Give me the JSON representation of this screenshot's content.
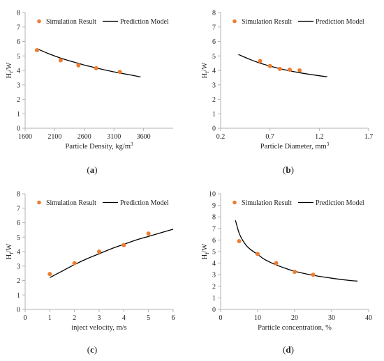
{
  "colors": {
    "sim": "#ed7d31",
    "model": "#000000",
    "axis": "#b3b3b3",
    "text": "#222222"
  },
  "chart_data": [
    {
      "type": "scatter",
      "panel": "a",
      "caption": "(a)",
      "xlabel": "Particle Density,  kg/m",
      "xlabel_sup": "3",
      "ylabel": "H",
      "ylabel_sub": "f",
      "ylabel_tail": "/W",
      "xlim": [
        1600,
        4100
      ],
      "ylim": [
        0,
        8
      ],
      "xticks": [
        1600,
        2100,
        2600,
        3100,
        3600
      ],
      "xtick_labels": [
        "1600",
        "2100",
        "2600",
        "3100",
        "3600"
      ],
      "yticks": [
        0,
        1,
        2,
        3,
        4,
        5,
        6,
        7,
        8
      ],
      "ytick_labels": [
        "0",
        "1",
        "2",
        "3",
        "4",
        "5",
        "6",
        "7",
        "8"
      ],
      "legend": {
        "sim": "Simulation Result",
        "model": "Prediction Model"
      },
      "series": [
        {
          "name": "Simulation Result",
          "type": "scatter",
          "x": [
            1800,
            2200,
            2500,
            2800,
            3200
          ],
          "y": [
            5.4,
            4.7,
            4.35,
            4.15,
            3.9
          ]
        },
        {
          "name": "Prediction Model",
          "type": "line",
          "x": [
            1800,
            2000,
            2200,
            2400,
            2600,
            2800,
            3000,
            3200,
            3400,
            3550
          ],
          "y": [
            5.5,
            5.15,
            4.85,
            4.6,
            4.37,
            4.17,
            3.98,
            3.82,
            3.67,
            3.55
          ]
        }
      ]
    },
    {
      "type": "scatter",
      "panel": "b",
      "caption": "(b)",
      "xlabel": "Particle Diameter,  mm",
      "xlabel_sup": "3",
      "ylabel": "H",
      "ylabel_sub": "f",
      "ylabel_tail": "/W",
      "xlim": [
        0.2,
        1.7
      ],
      "ylim": [
        0,
        8
      ],
      "xticks": [
        0.2,
        0.7,
        1.2,
        1.7
      ],
      "xtick_labels": [
        "0.2",
        "0.7",
        "1.2",
        "1.7"
      ],
      "yticks": [
        0,
        1,
        2,
        3,
        4,
        5,
        6,
        7,
        8
      ],
      "ytick_labels": [
        "0",
        "1",
        "2",
        "3",
        "4",
        "5",
        "6",
        "7",
        "8"
      ],
      "legend": {
        "sim": "Simulation Result",
        "model": "Prediction Model"
      },
      "series": [
        {
          "name": "Simulation Result",
          "type": "scatter",
          "x": [
            0.6,
            0.7,
            0.8,
            0.9,
            1.0
          ],
          "y": [
            4.65,
            4.3,
            4.1,
            4.05,
            4.0
          ]
        },
        {
          "name": "Prediction Model",
          "type": "line",
          "x": [
            0.38,
            0.5,
            0.6,
            0.7,
            0.8,
            0.9,
            1.0,
            1.1,
            1.2,
            1.28
          ],
          "y": [
            5.1,
            4.75,
            4.5,
            4.3,
            4.12,
            3.97,
            3.84,
            3.73,
            3.63,
            3.56
          ]
        }
      ]
    },
    {
      "type": "scatter",
      "panel": "c",
      "caption": "(c)",
      "xlabel": "inject velocity,  m/s",
      "xlabel_sup": "",
      "ylabel": "H",
      "ylabel_sub": "f",
      "ylabel_tail": "/W",
      "xlim": [
        0,
        6
      ],
      "ylim": [
        0,
        8
      ],
      "xticks": [
        0,
        1,
        2,
        3,
        4,
        5,
        6
      ],
      "xtick_labels": [
        "0",
        "1",
        "2",
        "3",
        "4",
        "5",
        "6"
      ],
      "yticks": [
        0,
        1,
        2,
        3,
        4,
        5,
        6,
        7,
        8
      ],
      "ytick_labels": [
        "0",
        "1",
        "2",
        "3",
        "4",
        "5",
        "6",
        "7",
        "8"
      ],
      "legend": {
        "sim": "Simulation Result",
        "model": "Prediction Model"
      },
      "series": [
        {
          "name": "Simulation Result",
          "type": "scatter",
          "x": [
            1,
            2,
            3,
            4,
            5
          ],
          "y": [
            2.45,
            3.2,
            4.0,
            4.45,
            5.25
          ]
        },
        {
          "name": "Prediction Model",
          "type": "line",
          "x": [
            1,
            1.5,
            2,
            2.5,
            3,
            3.5,
            4,
            4.5,
            5,
            5.5,
            6
          ],
          "y": [
            2.2,
            2.65,
            3.1,
            3.5,
            3.85,
            4.2,
            4.5,
            4.8,
            5.05,
            5.3,
            5.55
          ]
        }
      ]
    },
    {
      "type": "scatter",
      "panel": "d",
      "caption": "(d)",
      "xlabel": "Particle concentration,  %",
      "xlabel_sup": "",
      "ylabel": "H",
      "ylabel_sub": "f",
      "ylabel_tail": "/W",
      "xlim": [
        0,
        40
      ],
      "ylim": [
        0,
        10
      ],
      "xticks": [
        0,
        10,
        20,
        30,
        40
      ],
      "xtick_labels": [
        "0",
        "10",
        "20",
        "30",
        "40"
      ],
      "yticks": [
        0,
        1,
        2,
        3,
        4,
        5,
        6,
        7,
        8,
        9,
        10
      ],
      "ytick_labels": [
        "0",
        "1",
        "2",
        "3",
        "4",
        "5",
        "6",
        "7",
        "8",
        "9",
        "10"
      ],
      "legend": {
        "sim": "Simulation Result",
        "model": "Prediction Model"
      },
      "series": [
        {
          "name": "Simulation Result",
          "type": "scatter",
          "x": [
            5,
            10,
            15,
            20,
            25
          ],
          "y": [
            5.9,
            4.8,
            4.0,
            3.25,
            3.0
          ]
        },
        {
          "name": "Prediction Model",
          "type": "line",
          "x": [
            4,
            5,
            6,
            7,
            8,
            10,
            12,
            15,
            18,
            20,
            25,
            30,
            35,
            37
          ],
          "y": [
            7.7,
            6.6,
            5.95,
            5.5,
            5.2,
            4.75,
            4.3,
            3.85,
            3.5,
            3.3,
            2.95,
            2.7,
            2.5,
            2.45
          ]
        }
      ]
    }
  ]
}
